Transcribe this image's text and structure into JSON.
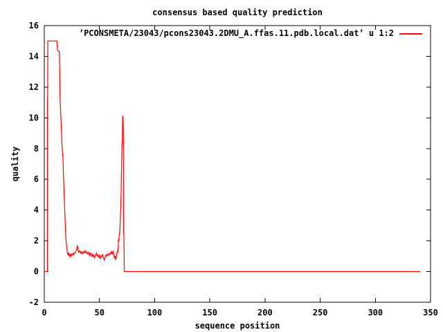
{
  "chart_data": {
    "type": "line",
    "title": "consensus based quality prediction",
    "xlabel": "sequence position",
    "ylabel": "quality",
    "xlim": [
      0,
      350
    ],
    "ylim": [
      -2,
      16
    ],
    "xticks": [
      0,
      50,
      100,
      150,
      200,
      250,
      300,
      350
    ],
    "yticks": [
      -2,
      0,
      2,
      4,
      6,
      8,
      10,
      12,
      14,
      16
    ],
    "grid": false,
    "legend_position": "top-right-inside",
    "background_color": "#ffffff",
    "axis_color": "#000000",
    "series": [
      {
        "name": "’PCONSMETA/23043/pcons23043.2DMU_A.ffas.11.pdb.local.dat’ u 1:2",
        "color": "#ff0000",
        "points": [
          [
            0,
            0
          ],
          [
            2.8,
            0
          ],
          [
            2.9,
            11.3
          ],
          [
            3.1,
            11.4
          ],
          [
            3.2,
            15
          ],
          [
            11.5,
            15
          ],
          [
            11.9,
            14.4
          ],
          [
            13.6,
            14.3
          ],
          [
            13.9,
            13.2
          ],
          [
            14.2,
            11.5
          ],
          [
            14.8,
            10.4
          ],
          [
            15.4,
            9.3
          ],
          [
            16,
            8.3
          ],
          [
            16.6,
            7.5
          ],
          [
            16.9,
            7.6
          ],
          [
            17.2,
            6.6
          ],
          [
            17.8,
            5.4
          ],
          [
            18.4,
            4.2
          ],
          [
            19,
            3.1
          ],
          [
            19.4,
            2.4
          ],
          [
            19.8,
            1.9
          ],
          [
            20.4,
            1.5
          ],
          [
            21,
            1.2
          ],
          [
            21.6,
            1.05
          ],
          [
            22.2,
            1.25
          ],
          [
            22.8,
            1.0
          ],
          [
            23.4,
            1.1
          ],
          [
            24,
            0.95
          ],
          [
            24.6,
            1.15
          ],
          [
            25.4,
            1.05
          ],
          [
            26.2,
            1.2
          ],
          [
            27,
            1.1
          ],
          [
            27.8,
            1.25
          ],
          [
            28.6,
            1.3
          ],
          [
            29.2,
            1.45
          ],
          [
            30,
            1.7
          ],
          [
            30.6,
            1.4
          ],
          [
            31.2,
            1.25
          ],
          [
            32,
            1.35
          ],
          [
            32.8,
            1.2
          ],
          [
            33.6,
            1.3
          ],
          [
            34.4,
            1.15
          ],
          [
            35.2,
            1.3
          ],
          [
            36,
            1.2
          ],
          [
            36.8,
            1.35
          ],
          [
            37.6,
            1.2
          ],
          [
            38.4,
            1.3
          ],
          [
            39.2,
            1.15
          ],
          [
            40,
            1.25
          ],
          [
            40.8,
            1.05
          ],
          [
            41.6,
            1.2
          ],
          [
            42.4,
            1.0
          ],
          [
            43.2,
            1.15
          ],
          [
            44,
            0.95
          ],
          [
            44.8,
            1.1
          ],
          [
            45.6,
            0.9
          ],
          [
            46.4,
            1.05
          ],
          [
            47.2,
            1.2
          ],
          [
            48,
            1.0
          ],
          [
            48.8,
            1.1
          ],
          [
            49.6,
            0.9
          ],
          [
            50.4,
            1.05
          ],
          [
            51.2,
            0.85
          ],
          [
            52,
            1.0
          ],
          [
            52.8,
            1.1
          ],
          [
            53.6,
            0.9
          ],
          [
            54.4,
            0.75
          ],
          [
            55.2,
            0.95
          ],
          [
            56,
            1.1
          ],
          [
            56.8,
            1.0
          ],
          [
            57.6,
            1.15
          ],
          [
            58.4,
            1.05
          ],
          [
            59.2,
            1.2
          ],
          [
            60,
            1.1
          ],
          [
            60.8,
            1.3
          ],
          [
            61.6,
            1.15
          ],
          [
            62.4,
            1.35
          ],
          [
            63,
            1.1
          ],
          [
            63.6,
            0.85
          ],
          [
            64.2,
            1.0
          ],
          [
            64.8,
            0.75
          ],
          [
            65.4,
            1.05
          ],
          [
            66,
            1.3
          ],
          [
            66.4,
            1.35
          ],
          [
            66.8,
            1.3
          ],
          [
            67.2,
            2.05
          ],
          [
            67.6,
            2.0
          ],
          [
            68,
            2.5
          ],
          [
            68.3,
            2.45
          ],
          [
            68.7,
            3.0
          ],
          [
            69,
            3.6
          ],
          [
            69.3,
            4.3
          ],
          [
            69.6,
            5.2
          ],
          [
            69.9,
            6.3
          ],
          [
            70.2,
            7.5
          ],
          [
            70.4,
            8.35
          ],
          [
            70.6,
            8.25
          ],
          [
            70.8,
            9.2
          ],
          [
            71,
            10.1
          ],
          [
            71.4,
            10.05
          ],
          [
            71.6,
            8.8
          ],
          [
            71.7,
            6.0
          ],
          [
            71.8,
            3.4
          ],
          [
            71.9,
            2.5
          ],
          [
            72.1,
            2.45
          ],
          [
            72.3,
            1.2
          ],
          [
            72.5,
            0
          ],
          [
            340.5,
            0
          ]
        ]
      }
    ]
  }
}
